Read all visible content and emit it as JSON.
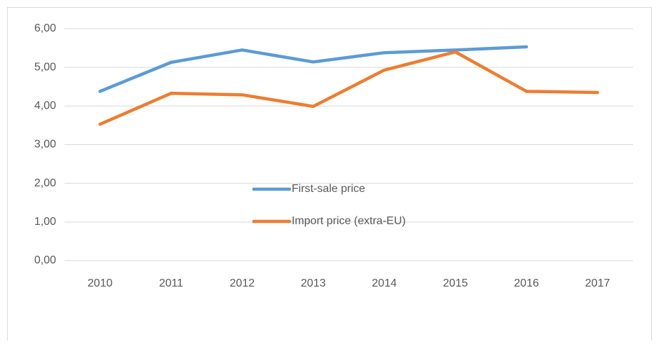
{
  "chart_data": {
    "type": "line",
    "categories": [
      "2010",
      "2011",
      "2012",
      "2013",
      "2014",
      "2015",
      "2016",
      "2017"
    ],
    "series": [
      {
        "name": "First-sale price",
        "color": "#5b9bd5",
        "values": [
          4.38,
          5.13,
          5.45,
          5.14,
          5.38,
          5.45,
          5.53,
          null
        ]
      },
      {
        "name": "Import price (extra-EU)",
        "color": "#ed7d31",
        "values": [
          3.53,
          4.33,
          4.29,
          3.99,
          4.93,
          5.4,
          4.38,
          4.35
        ]
      }
    ],
    "ylim": [
      0,
      6
    ],
    "yticks": [
      {
        "value": 0,
        "label": "0,00"
      },
      {
        "value": 1,
        "label": "1,00"
      },
      {
        "value": 2,
        "label": "2,00"
      },
      {
        "value": 3,
        "label": "3,00"
      },
      {
        "value": 4,
        "label": "4,00"
      },
      {
        "value": 5,
        "label": "5,00"
      },
      {
        "value": 6,
        "label": "6,00"
      }
    ],
    "grid": true
  }
}
